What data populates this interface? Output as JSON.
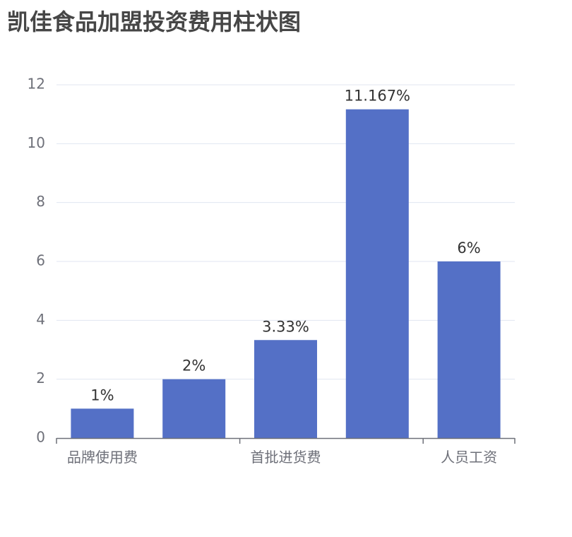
{
  "chart_data": {
    "type": "bar",
    "title": "凯佳食品加盟投资费用柱状图",
    "categories": [
      "品牌使用费",
      "",
      "首批进货费",
      "",
      "人员工资"
    ],
    "values": [
      1,
      2,
      3.33,
      11.167,
      6
    ],
    "value_labels": [
      "1%",
      "2%",
      "3.33%",
      "11.167%",
      "6%"
    ],
    "ylim": [
      0,
      12
    ],
    "yticks": [
      "0",
      "2",
      "4",
      "6",
      "8",
      "10",
      "12"
    ],
    "xlabel": "",
    "ylabel": "",
    "grid": true,
    "colors": {
      "bar": "#5470c6",
      "grid": "#e0e6f1",
      "axis": "#6e7079",
      "title": "#464646",
      "label": "#333333"
    }
  }
}
